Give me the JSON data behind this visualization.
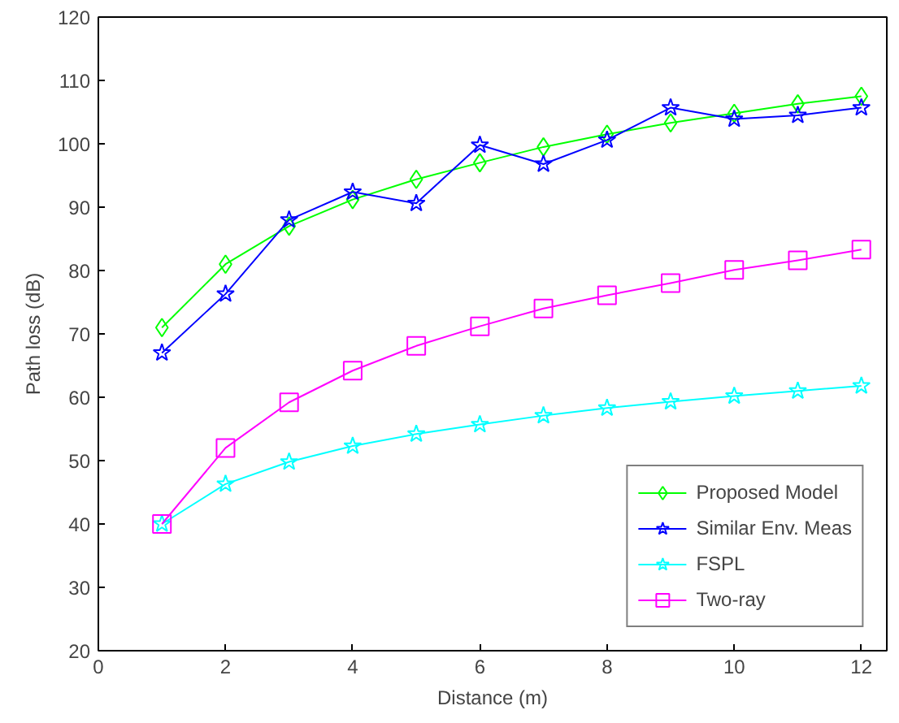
{
  "chart_data": {
    "type": "line",
    "xlabel": "Distance (m)",
    "ylabel": "Path loss (dB)",
    "x": [
      1,
      2,
      3,
      4,
      5,
      6,
      7,
      8,
      9,
      10,
      11,
      12
    ],
    "xlim": [
      0,
      12.4
    ],
    "xticks": [
      0,
      2,
      4,
      6,
      8,
      10,
      12
    ],
    "ylim": [
      20,
      120
    ],
    "yticks": [
      20,
      30,
      40,
      50,
      60,
      70,
      80,
      90,
      100,
      110,
      120
    ],
    "grid": false,
    "legend": "bottom right",
    "line_style": "solid",
    "series": [
      {
        "name": "Proposed Model",
        "color": "#00ff00",
        "marker": "diamond",
        "values": [
          71,
          81,
          87,
          91.2,
          94.4,
          97,
          99.5,
          101.5,
          103.3,
          104.8,
          106.3,
          107.5
        ]
      },
      {
        "name": "Similar Env. Meas",
        "color": "#0000ff",
        "marker": "star",
        "values": [
          67,
          76.3,
          88,
          92.4,
          90.6,
          99.8,
          96.8,
          100.6,
          105.7,
          103.9,
          104.5,
          105.7
        ]
      },
      {
        "name": "FSPL",
        "color": "#00ffff",
        "marker": "star",
        "values": [
          40,
          46.3,
          49.8,
          52.3,
          54.2,
          55.7,
          57.1,
          58.3,
          59.3,
          60.2,
          61,
          61.8
        ]
      },
      {
        "name": "Two-ray",
        "color": "#ff00ff",
        "marker": "square",
        "values": [
          40,
          52,
          59.2,
          64.2,
          68.1,
          71.2,
          74,
          76.1,
          78,
          80.1,
          81.6,
          83.3
        ]
      }
    ]
  }
}
